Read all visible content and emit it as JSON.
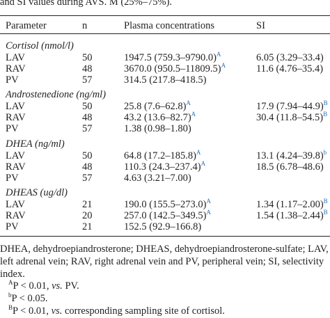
{
  "caption": "and SI values during AVS. M (25%–75%).",
  "table": {
    "header": [
      "Parameter",
      "n",
      "Plasma concentrations",
      "SI"
    ],
    "groups": [
      {
        "title": "Cortisol (nmol/l)",
        "rows": [
          {
            "param": "LAV",
            "n": "50",
            "plasma": "1947.5 (759.3–9790.0)",
            "plasma_sup": "A",
            "si": "6.05 (3.29–33.4)"
          },
          {
            "param": "RAV",
            "n": "48",
            "plasma": "3670.0 (950.5–11809.5)",
            "plasma_sup": "A",
            "si": "11.6 (4.76–35.4)"
          },
          {
            "param": "PV",
            "n": "57",
            "plasma": "314.5 (217.8–418.5)"
          }
        ]
      },
      {
        "title": "Androstenedione (ng/ml)",
        "rows": [
          {
            "param": "LAV",
            "n": "50",
            "plasma": "25.8 (7.6–62.8)",
            "plasma_sup": "A",
            "si": "17.9 (7.94–44.9)",
            "si_sup": "B"
          },
          {
            "param": "RAV",
            "n": "48",
            "plasma": "43.2 (13.6–82.7)",
            "plasma_sup": "A",
            "si": "30.4 (11.8–54.5)",
            "si_sup": "B"
          },
          {
            "param": "PV",
            "n": "57",
            "plasma": "1.38 (0.98–1.80)"
          }
        ]
      },
      {
        "title": "DHEA (ng/ml)",
        "rows": [
          {
            "param": "LAV",
            "n": "50",
            "plasma": "64.8 (17.2–185.8)",
            "plasma_sup": "A",
            "si": "13.1 (4.24–39.8)",
            "si_sup": "b"
          },
          {
            "param": "RAV",
            "n": "48",
            "plasma": "110.3 (24.3–237.4)",
            "plasma_sup": "A",
            "si": "18.5 (6.78–48.6)"
          },
          {
            "param": "PV",
            "n": "57",
            "plasma": "4.63 (3.21–7.00)"
          }
        ]
      },
      {
        "title": "DHEAS (ug/dl)",
        "rows": [
          {
            "param": "LAV",
            "n": "21",
            "plasma": "190.0 (155.5–273.0)",
            "plasma_sup": "A",
            "si": "1.34 (1.17–2.00)",
            "si_sup": "B"
          },
          {
            "param": "RAV",
            "n": "20",
            "plasma": "257.0 (142.5–349.5)",
            "plasma_sup": "A",
            "si": "1.54 (1.38–2.44)",
            "si_sup": "B"
          },
          {
            "param": "PV",
            "n": "21",
            "plasma": "152.5 (92.9–166.8)"
          }
        ]
      }
    ]
  },
  "footnote": {
    "abbreviations": "DHEA, dehydroepiandrosterone; DHEAS, dehydroepiandrosterone-sulfate; LAV, left adrenal vein; RAV, right adrenal vein and PV, peripheral vein; SI, selectivity index.",
    "notes": [
      {
        "mark": "A",
        "parts": [
          "P < 0.01, ",
          "vs.",
          " PV."
        ]
      },
      {
        "mark": "b",
        "parts": [
          "P < 0.05."
        ]
      },
      {
        "mark": "B",
        "parts": [
          "P < 0.01, ",
          "vs.",
          " corresponding sampling site of cortisol."
        ]
      }
    ]
  }
}
